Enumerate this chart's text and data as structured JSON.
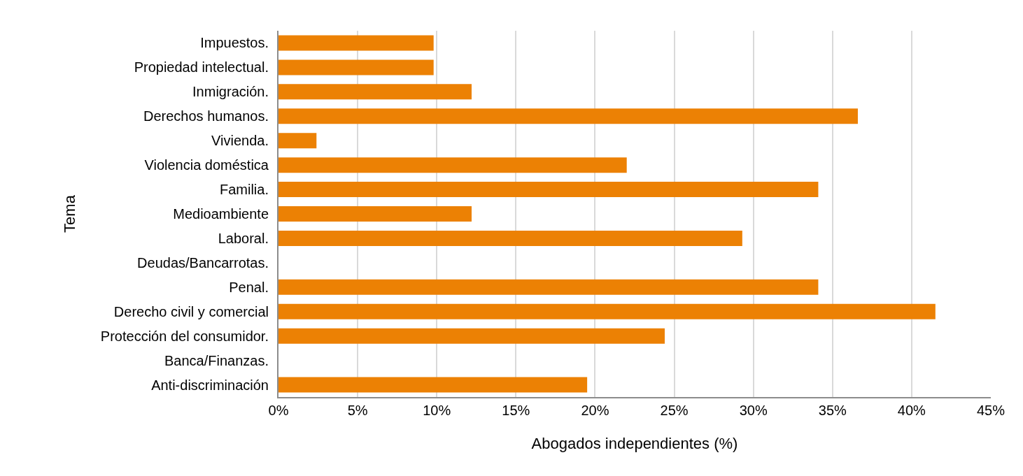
{
  "chart_data": {
    "type": "bar",
    "orientation": "horizontal",
    "xlabel": "Abogados independientes (%)",
    "ylabel": "Tema",
    "categories": [
      "Impuestos.",
      "Propiedad intelectual.",
      "Inmigración.",
      "Derechos humanos.",
      "Vivienda.",
      "Violencia doméstica",
      "Familia.",
      "Medioambiente",
      "Laboral.",
      "Deudas/Bancarrotas.",
      "Penal.",
      "Derecho civil y comercial",
      "Protección del consumidor.",
      "Banca/Finanzas.",
      "Anti-discriminación"
    ],
    "values": [
      9.8,
      9.8,
      12.2,
      36.6,
      2.4,
      22.0,
      34.1,
      12.2,
      29.3,
      0,
      34.1,
      41.5,
      24.4,
      0,
      19.5
    ],
    "color": "#ec8104",
    "xlim": [
      0,
      45
    ],
    "xticks": [
      {
        "value": 0,
        "label": "0%"
      },
      {
        "value": 5,
        "label": "5%"
      },
      {
        "value": 10,
        "label": "10%"
      },
      {
        "value": 15,
        "label": "15%"
      },
      {
        "value": 20,
        "label": "20%"
      },
      {
        "value": 25,
        "label": "25%"
      },
      {
        "value": 30,
        "label": "30%"
      },
      {
        "value": 35,
        "label": "35%"
      },
      {
        "value": 40,
        "label": "40%"
      },
      {
        "value": 45,
        "label": "45%"
      }
    ],
    "grid": "x"
  }
}
